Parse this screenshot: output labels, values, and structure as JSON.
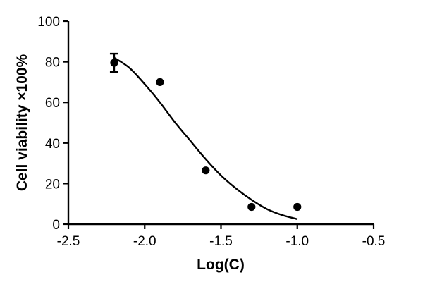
{
  "chart_data": {
    "type": "scatter",
    "title": "",
    "xlabel": "Log(C)",
    "ylabel": "Cell viability  ×100%",
    "xlim": [
      -2.5,
      -0.5
    ],
    "ylim": [
      0,
      100
    ],
    "x_ticks": [
      -2.5,
      -2.0,
      -1.5,
      -1.0,
      -0.5
    ],
    "x_tick_labels": [
      "-2.5",
      "-2.0",
      "-1.5",
      "-1.0",
      "-0.5"
    ],
    "y_ticks": [
      0,
      20,
      40,
      60,
      80,
      100
    ],
    "y_tick_labels": [
      "0",
      "20",
      "40",
      "60",
      "80",
      "100"
    ],
    "grid": false,
    "legend": false,
    "points": [
      {
        "x": -2.2,
        "y": 79.5,
        "err": 4.5
      },
      {
        "x": -1.9,
        "y": 70
      },
      {
        "x": -1.6,
        "y": 26.5
      },
      {
        "x": -1.3,
        "y": 8.5
      },
      {
        "x": -1.0,
        "y": 8.5
      }
    ],
    "fit_curve": {
      "type": "sigmoid",
      "x_range": [
        -2.2,
        -1.0
      ],
      "points": [
        [
          -2.2,
          82
        ],
        [
          -2.1,
          77
        ],
        [
          -2.0,
          69
        ],
        [
          -1.9,
          60
        ],
        [
          -1.8,
          50
        ],
        [
          -1.7,
          41
        ],
        [
          -1.6,
          32
        ],
        [
          -1.5,
          24
        ],
        [
          -1.4,
          17.5
        ],
        [
          -1.3,
          12
        ],
        [
          -1.2,
          7.5
        ],
        [
          -1.1,
          4.5
        ],
        [
          -1.0,
          2.5
        ]
      ]
    }
  }
}
